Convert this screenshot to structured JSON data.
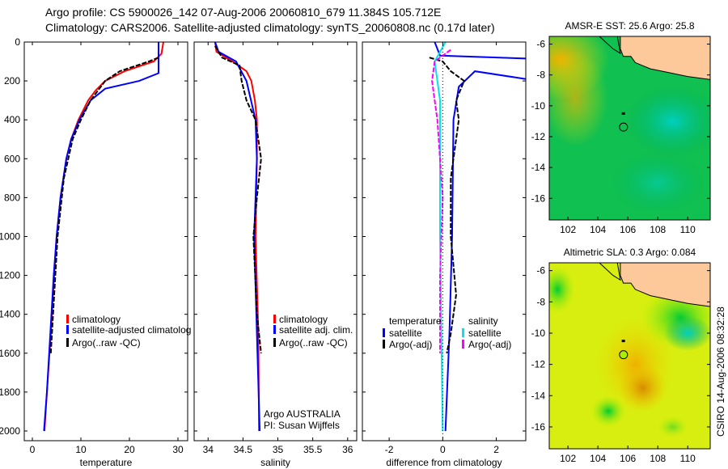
{
  "title_lines": [
    "Argo profile: CS 5900026_142 07-Aug-2006 20060810_679 11.384S 105.712E",
    "Climatology: CARS2006. Satellite-adjusted climatology: synTS_20060808.nc (0.17d later)"
  ],
  "side_text": "CSIRO 14-Aug-2006 08:32:28",
  "colors": {
    "climatology": "#ff0000",
    "satellite": "#0000ff",
    "argo": "#000000",
    "sal_satellite": "#00e5e5",
    "sal_argo": "#ff00ff",
    "land": "#fdc89a"
  },
  "chart_data": [
    {
      "type": "line",
      "xlabel": "temperature",
      "ylabel": "",
      "xlim": [
        -1.67,
        32
      ],
      "ylim": [
        2050,
        0
      ],
      "xticks": [
        "0",
        "10",
        "20",
        "30"
      ],
      "yticks": [
        "0",
        "200",
        "400",
        "600",
        "800",
        "1000",
        "1200",
        "1400",
        "1600",
        "1800",
        "2000"
      ],
      "legend": [
        "climatology",
        "satellite-adjusted climatolog",
        "Argo(..raw -QC)"
      ],
      "legend_placement": "lower-right",
      "series": [
        {
          "name": "climatology",
          "color": "#ff0000",
          "points": [
            [
              27,
              0
            ],
            [
              26.6,
              60
            ],
            [
              25,
              100
            ],
            [
              19,
              150
            ],
            [
              15,
              200
            ],
            [
              13,
              250
            ],
            [
              11.5,
              300
            ],
            [
              9.5,
              400
            ],
            [
              8,
              500
            ],
            [
              7,
              600
            ],
            [
              5.8,
              800
            ],
            [
              5,
              1000
            ],
            [
              4.5,
              1200
            ],
            [
              3.8,
              1500
            ],
            [
              3,
              1800
            ],
            [
              2.5,
              2000
            ]
          ]
        },
        {
          "name": "satellite-adjusted climatology",
          "color": "#0000ff",
          "points": [
            [
              26,
              0
            ],
            [
              26,
              160
            ],
            [
              22,
              200
            ],
            [
              15,
              240
            ],
            [
              12,
              300
            ],
            [
              9.7,
              400
            ],
            [
              8,
              500
            ],
            [
              7,
              600
            ],
            [
              5.8,
              800
            ],
            [
              5,
              1000
            ],
            [
              4.4,
              1200
            ],
            [
              3.7,
              1500
            ],
            [
              3,
              1800
            ],
            [
              2.4,
              2000
            ]
          ]
        },
        {
          "name": "Argo(..raw -QC)",
          "color": "#000000",
          "dashed": true,
          "points": [
            [
              26,
              80
            ],
            [
              24,
              100
            ],
            [
              18,
              150
            ],
            [
              15,
              200
            ],
            [
              12,
              300
            ],
            [
              10,
              400
            ],
            [
              8.3,
              500
            ],
            [
              6.5,
              700
            ],
            [
              5.2,
              1000
            ],
            [
              4.5,
              1300
            ],
            [
              3.8,
              1600
            ]
          ]
        }
      ]
    },
    {
      "type": "line",
      "xlabel": "salinity",
      "ylabel": "",
      "xlim": [
        33.8,
        36.13
      ],
      "ylim": [
        2050,
        0
      ],
      "xticks": [
        "34",
        "34.5",
        "35",
        "35.5",
        "36"
      ],
      "legend": [
        "climatology",
        "satellite adj. clim.",
        "Argo(..raw -QC)"
      ],
      "legend_placement": "lower-right",
      "annotation": [
        "Argo AUSTRALIA",
        "PI: Susan Wijffels"
      ],
      "series": [
        {
          "name": "climatology",
          "color": "#ff0000",
          "points": [
            [
              34.1,
              0
            ],
            [
              34.12,
              50
            ],
            [
              34.35,
              100
            ],
            [
              34.55,
              150
            ],
            [
              34.62,
              200
            ],
            [
              34.67,
              300
            ],
            [
              34.7,
              400
            ],
            [
              34.7,
              600
            ],
            [
              34.68,
              1000
            ],
            [
              34.72,
              1500
            ],
            [
              34.73,
              2000
            ]
          ]
        },
        {
          "name": "satellite adj. clim.",
          "color": "#0000ff",
          "points": [
            [
              34.1,
              0
            ],
            [
              34.15,
              50
            ],
            [
              34.4,
              100
            ],
            [
              34.55,
              200
            ],
            [
              34.68,
              400
            ],
            [
              34.7,
              600
            ],
            [
              34.66,
              1000
            ],
            [
              34.7,
              1500
            ],
            [
              34.74,
              2000
            ]
          ]
        },
        {
          "name": "Argo(..raw -QC)",
          "color": "#000000",
          "dashed": true,
          "points": [
            [
              34.1,
              20
            ],
            [
              34.2,
              80
            ],
            [
              34.45,
              120
            ],
            [
              34.48,
              200
            ],
            [
              34.55,
              300
            ],
            [
              34.68,
              400
            ],
            [
              34.76,
              600
            ],
            [
              34.7,
              800
            ],
            [
              34.65,
              1000
            ],
            [
              34.7,
              1400
            ],
            [
              34.76,
              1600
            ]
          ]
        }
      ]
    },
    {
      "type": "line",
      "xlabel": "difference from climatology",
      "ylabel": "",
      "xlim": [
        -3,
        3.1
      ],
      "ylim": [
        2050,
        0
      ],
      "xticks": [
        "-2",
        "0",
        "2"
      ],
      "legend_groups": [
        {
          "title": "temperature",
          "items": [
            "satellite",
            "Argo(-adj)"
          ]
        },
        {
          "title": "salinity",
          "items": [
            "satellite",
            "Argo(-adj)"
          ]
        }
      ],
      "series": [
        {
          "name": "temperature satellite",
          "color": "#0000ff",
          "points": [
            [
              -0.3,
              0
            ],
            [
              -0.1,
              70
            ],
            [
              3.1,
              85
            ]
          ]
        },
        {
          "name": "temperature satellite (deep)",
          "color": "#0000ff",
          "points": [
            [
              3.1,
              190
            ],
            [
              1.2,
              150
            ],
            [
              0.6,
              230
            ],
            [
              0.4,
              400
            ],
            [
              0.35,
              1000
            ],
            [
              0.25,
              1500
            ],
            [
              0.1,
              2000
            ]
          ]
        },
        {
          "name": "temperature Argo(-adj)",
          "color": "#000000",
          "dashed": true,
          "points": [
            [
              -0.5,
              80
            ],
            [
              0,
              100
            ],
            [
              0.3,
              150
            ],
            [
              0.8,
              200
            ],
            [
              0.5,
              300
            ],
            [
              0.6,
              400
            ],
            [
              0.5,
              500
            ],
            [
              0.3,
              700
            ],
            [
              0.3,
              1000
            ],
            [
              0.5,
              1300
            ],
            [
              0.3,
              1500
            ],
            [
              0.15,
              1600
            ]
          ]
        },
        {
          "name": "salinity satellite",
          "color": "#00e5e5",
          "points": [
            [
              0.1,
              0
            ],
            [
              -0.3,
              100
            ],
            [
              -0.1,
              300
            ],
            [
              -0.1,
              1000
            ],
            [
              0,
              2000
            ]
          ]
        },
        {
          "name": "salinity Argo(-adj)",
          "color": "#ff00ff",
          "dashed": true,
          "points": [
            [
              0.3,
              40
            ],
            [
              -0.3,
              100
            ],
            [
              -0.4,
              200
            ],
            [
              -0.2,
              400
            ],
            [
              0,
              800
            ],
            [
              -0.1,
              1200
            ],
            [
              -0.1,
              1600
            ]
          ]
        }
      ]
    },
    {
      "type": "heatmap",
      "title": "AMSR-E SST: 25.6 Argo: 25.8",
      "xlim": [
        100.75,
        111.5
      ],
      "ylim": [
        -17.4,
        -5.5
      ],
      "xticks": [
        "102",
        "104",
        "106",
        "108",
        "110"
      ],
      "yticks": [
        "-6",
        "-8",
        "-10",
        "-12",
        "-14",
        "-16"
      ],
      "argo_position": [
        105.71,
        -11.38
      ]
    },
    {
      "type": "heatmap",
      "title": "Altimetric SLA: 0.3 Argo: 0.084",
      "xlim": [
        100.75,
        111.5
      ],
      "ylim": [
        -17.4,
        -5.5
      ],
      "xticks": [
        "102",
        "104",
        "106",
        "108",
        "110"
      ],
      "yticks": [
        "-6",
        "-8",
        "-10",
        "-12",
        "-14",
        "-16"
      ],
      "argo_position": [
        105.71,
        -11.38
      ]
    }
  ]
}
